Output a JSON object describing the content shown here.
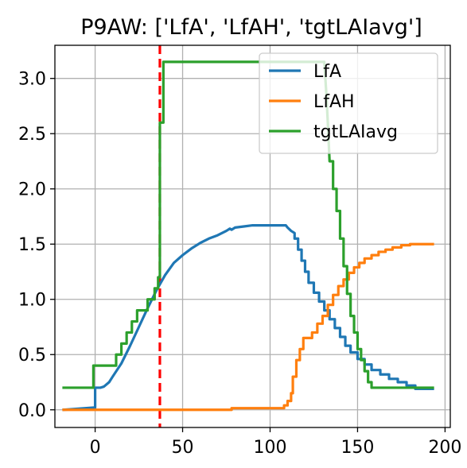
{
  "chart_data": {
    "type": "line",
    "title": "P9AW: ['LfA', 'LfAH', 'tgtLAIavg']",
    "xlabel": "",
    "ylabel": "",
    "xlim": [
      -23,
      203
    ],
    "ylim": [
      -0.16,
      3.3
    ],
    "xticks": [
      0,
      50,
      100,
      150,
      200
    ],
    "yticks": [
      0.0,
      0.5,
      1.0,
      1.5,
      2.0,
      2.5,
      3.0
    ],
    "xtick_labels": [
      "0",
      "50",
      "100",
      "150",
      "200"
    ],
    "ytick_labels": [
      "0.0",
      "0.5",
      "1.0",
      "1.5",
      "2.0",
      "2.5",
      "3.0"
    ],
    "grid": true,
    "legend_position": "top-right",
    "vline": {
      "x": 37,
      "color": "#ff0000",
      "style": "dashed"
    },
    "series": [
      {
        "name": "LfA",
        "color": "#1f77b4",
        "points": [
          [
            -18,
            0.0
          ],
          [
            -1,
            0.02
          ],
          [
            0,
            0.02
          ],
          [
            0,
            0.2
          ],
          [
            3,
            0.2
          ],
          [
            5,
            0.21
          ],
          [
            8,
            0.25
          ],
          [
            10,
            0.3
          ],
          [
            15,
            0.42
          ],
          [
            20,
            0.58
          ],
          [
            25,
            0.75
          ],
          [
            30,
            0.92
          ],
          [
            35,
            1.08
          ],
          [
            40,
            1.22
          ],
          [
            45,
            1.33
          ],
          [
            50,
            1.4
          ],
          [
            55,
            1.46
          ],
          [
            60,
            1.51
          ],
          [
            65,
            1.55
          ],
          [
            70,
            1.58
          ],
          [
            75,
            1.62
          ],
          [
            77,
            1.64
          ],
          [
            78,
            1.63
          ],
          [
            80,
            1.65
          ],
          [
            85,
            1.66
          ],
          [
            90,
            1.67
          ],
          [
            100,
            1.67
          ],
          [
            107,
            1.67
          ],
          [
            109,
            1.67
          ],
          [
            110,
            1.65
          ],
          [
            112,
            1.62
          ],
          [
            114,
            1.6
          ],
          [
            114,
            1.55
          ],
          [
            116,
            1.55
          ],
          [
            116,
            1.45
          ],
          [
            118,
            1.45
          ],
          [
            118,
            1.35
          ],
          [
            120,
            1.35
          ],
          [
            120,
            1.25
          ],
          [
            122,
            1.25
          ],
          [
            122,
            1.15
          ],
          [
            125,
            1.15
          ],
          [
            125,
            1.06
          ],
          [
            128,
            1.06
          ],
          [
            128,
            0.98
          ],
          [
            131,
            0.98
          ],
          [
            131,
            0.9
          ],
          [
            134,
            0.9
          ],
          [
            134,
            0.82
          ],
          [
            137,
            0.82
          ],
          [
            137,
            0.74
          ],
          [
            140,
            0.74
          ],
          [
            140,
            0.66
          ],
          [
            143,
            0.66
          ],
          [
            143,
            0.58
          ],
          [
            146,
            0.58
          ],
          [
            146,
            0.52
          ],
          [
            150,
            0.52
          ],
          [
            150,
            0.46
          ],
          [
            154,
            0.46
          ],
          [
            154,
            0.41
          ],
          [
            158,
            0.41
          ],
          [
            158,
            0.36
          ],
          [
            163,
            0.36
          ],
          [
            163,
            0.32
          ],
          [
            168,
            0.32
          ],
          [
            168,
            0.28
          ],
          [
            173,
            0.28
          ],
          [
            173,
            0.25
          ],
          [
            178,
            0.25
          ],
          [
            178,
            0.22
          ],
          [
            183,
            0.22
          ],
          [
            183,
            0.19
          ],
          [
            193,
            0.19
          ]
        ]
      },
      {
        "name": "LfAH",
        "color": "#ff7f0e",
        "points": [
          [
            -18,
            0.0
          ],
          [
            78,
            0.0
          ],
          [
            78,
            0.015
          ],
          [
            108,
            0.015
          ],
          [
            108,
            0.04
          ],
          [
            110,
            0.04
          ],
          [
            110,
            0.08
          ],
          [
            112,
            0.08
          ],
          [
            112,
            0.15
          ],
          [
            113,
            0.15
          ],
          [
            113,
            0.3
          ],
          [
            115,
            0.3
          ],
          [
            115,
            0.45
          ],
          [
            117,
            0.45
          ],
          [
            117,
            0.55
          ],
          [
            119,
            0.55
          ],
          [
            119,
            0.65
          ],
          [
            124,
            0.65
          ],
          [
            124,
            0.7
          ],
          [
            127,
            0.7
          ],
          [
            127,
            0.78
          ],
          [
            130,
            0.78
          ],
          [
            130,
            0.85
          ],
          [
            133,
            0.85
          ],
          [
            133,
            0.95
          ],
          [
            136,
            0.95
          ],
          [
            136,
            1.04
          ],
          [
            139,
            1.04
          ],
          [
            139,
            1.12
          ],
          [
            142,
            1.12
          ],
          [
            142,
            1.18
          ],
          [
            145,
            1.18
          ],
          [
            145,
            1.24
          ],
          [
            148,
            1.24
          ],
          [
            148,
            1.29
          ],
          [
            151,
            1.29
          ],
          [
            151,
            1.33
          ],
          [
            154,
            1.33
          ],
          [
            154,
            1.37
          ],
          [
            158,
            1.37
          ],
          [
            158,
            1.4
          ],
          [
            162,
            1.4
          ],
          [
            162,
            1.43
          ],
          [
            166,
            1.43
          ],
          [
            166,
            1.45
          ],
          [
            170,
            1.45
          ],
          [
            170,
            1.47
          ],
          [
            175,
            1.47
          ],
          [
            175,
            1.49
          ],
          [
            180,
            1.49
          ],
          [
            180,
            1.5
          ],
          [
            193,
            1.5
          ]
        ]
      },
      {
        "name": "tgtLAIavg",
        "color": "#2ca02c",
        "points": [
          [
            -18,
            0.2
          ],
          [
            -1,
            0.2
          ],
          [
            -1,
            0.4
          ],
          [
            12,
            0.4
          ],
          [
            12,
            0.5
          ],
          [
            15,
            0.5
          ],
          [
            15,
            0.6
          ],
          [
            18,
            0.6
          ],
          [
            18,
            0.7
          ],
          [
            21,
            0.7
          ],
          [
            21,
            0.8
          ],
          [
            24,
            0.8
          ],
          [
            24,
            0.9
          ],
          [
            30,
            0.9
          ],
          [
            30,
            1.0
          ],
          [
            34,
            1.0
          ],
          [
            34,
            1.1
          ],
          [
            36,
            1.1
          ],
          [
            36,
            1.2
          ],
          [
            37,
            1.2
          ],
          [
            37,
            2.6
          ],
          [
            39,
            2.6
          ],
          [
            39,
            3.15
          ],
          [
            131,
            3.15
          ],
          [
            132,
            2.9
          ],
          [
            133,
            2.6
          ],
          [
            134,
            2.25
          ],
          [
            136,
            2.25
          ],
          [
            136,
            2.0
          ],
          [
            138,
            2.0
          ],
          [
            138,
            1.8
          ],
          [
            140,
            1.8
          ],
          [
            140,
            1.55
          ],
          [
            142,
            1.55
          ],
          [
            142,
            1.3
          ],
          [
            144,
            1.3
          ],
          [
            144,
            1.05
          ],
          [
            146,
            1.05
          ],
          [
            146,
            0.85
          ],
          [
            148,
            0.85
          ],
          [
            148,
            0.7
          ],
          [
            150,
            0.7
          ],
          [
            150,
            0.55
          ],
          [
            152,
            0.55
          ],
          [
            152,
            0.45
          ],
          [
            154,
            0.45
          ],
          [
            154,
            0.35
          ],
          [
            156,
            0.35
          ],
          [
            156,
            0.25
          ],
          [
            158,
            0.25
          ],
          [
            158,
            0.2
          ],
          [
            193,
            0.2
          ]
        ]
      }
    ]
  }
}
